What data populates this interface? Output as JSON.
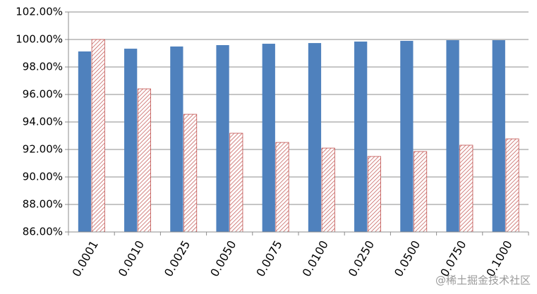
{
  "chart_data": {
    "type": "bar",
    "categories": [
      "0.0001",
      "0.0010",
      "0.0025",
      "0.0050",
      "0.0075",
      "0.0100",
      "0.0250",
      "0.0500",
      "0.0750",
      "0.1000"
    ],
    "series": [
      {
        "color": "#4f81bd",
        "values": [
          99.13,
          99.33,
          99.49,
          99.59,
          99.69,
          99.74,
          99.85,
          99.9,
          99.95,
          99.95
        ]
      },
      {
        "color": "#c0504d",
        "hatch": true,
        "values": [
          100.0,
          96.41,
          94.56,
          93.18,
          92.51,
          92.1,
          91.49,
          91.85,
          92.31,
          92.77
        ]
      }
    ],
    "ylim": [
      86,
      102
    ],
    "yticks": [
      {
        "value": 86,
        "label": "86.00%"
      },
      {
        "value": 88,
        "label": "88.00%"
      },
      {
        "value": 90,
        "label": "90.00%"
      },
      {
        "value": 92,
        "label": "92.00%"
      },
      {
        "value": 94,
        "label": "94.00%"
      },
      {
        "value": 96,
        "label": "96.00%"
      },
      {
        "value": 98,
        "label": "98.00%"
      },
      {
        "value": 100,
        "label": "100.00%"
      },
      {
        "value": 102,
        "label": "102.00%"
      }
    ],
    "grid": true,
    "watermark": "@稀土掘金技术社区"
  }
}
